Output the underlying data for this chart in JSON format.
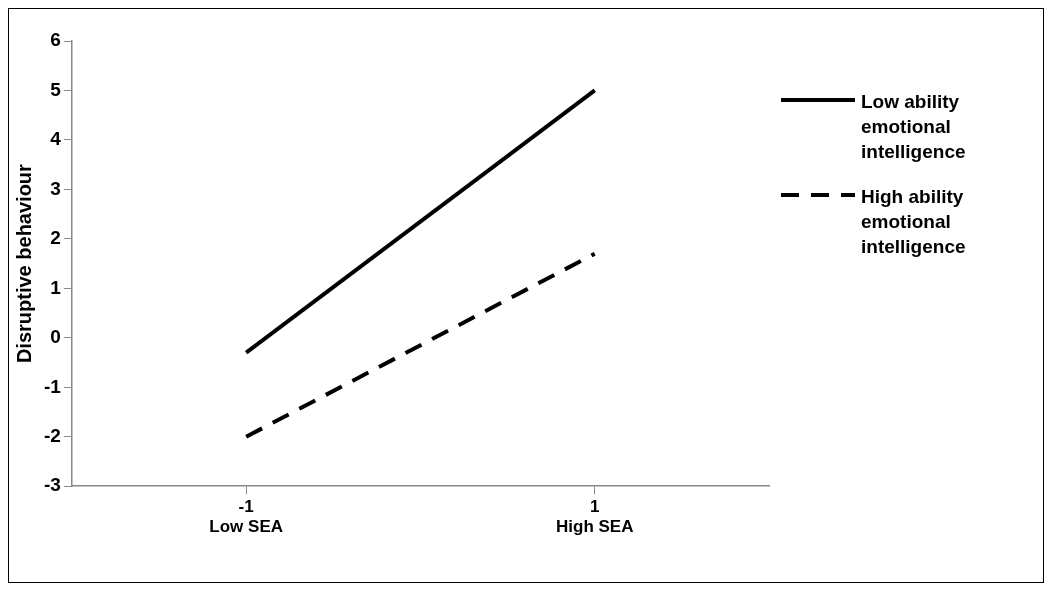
{
  "chart_data": {
    "type": "line",
    "ylabel": "Disruptive behaviour",
    "categories": [
      "-1\nLow SEA",
      "1\nHigh SEA"
    ],
    "series": [
      {
        "name": "Low ability emotional intelligence",
        "color": "#000000",
        "line_style": "solid",
        "values": [
          -0.3,
          5.0
        ]
      },
      {
        "name": "High ability emotional intelligence",
        "color": "#000000",
        "line_style": "dashed",
        "values": [
          -2.0,
          1.7
        ]
      }
    ],
    "ylim": [
      -3,
      6
    ],
    "yticks": [
      -3,
      -2,
      -1,
      0,
      1,
      2,
      3,
      4,
      5,
      6
    ],
    "grid": false,
    "legend": "right",
    "marker": "none"
  }
}
